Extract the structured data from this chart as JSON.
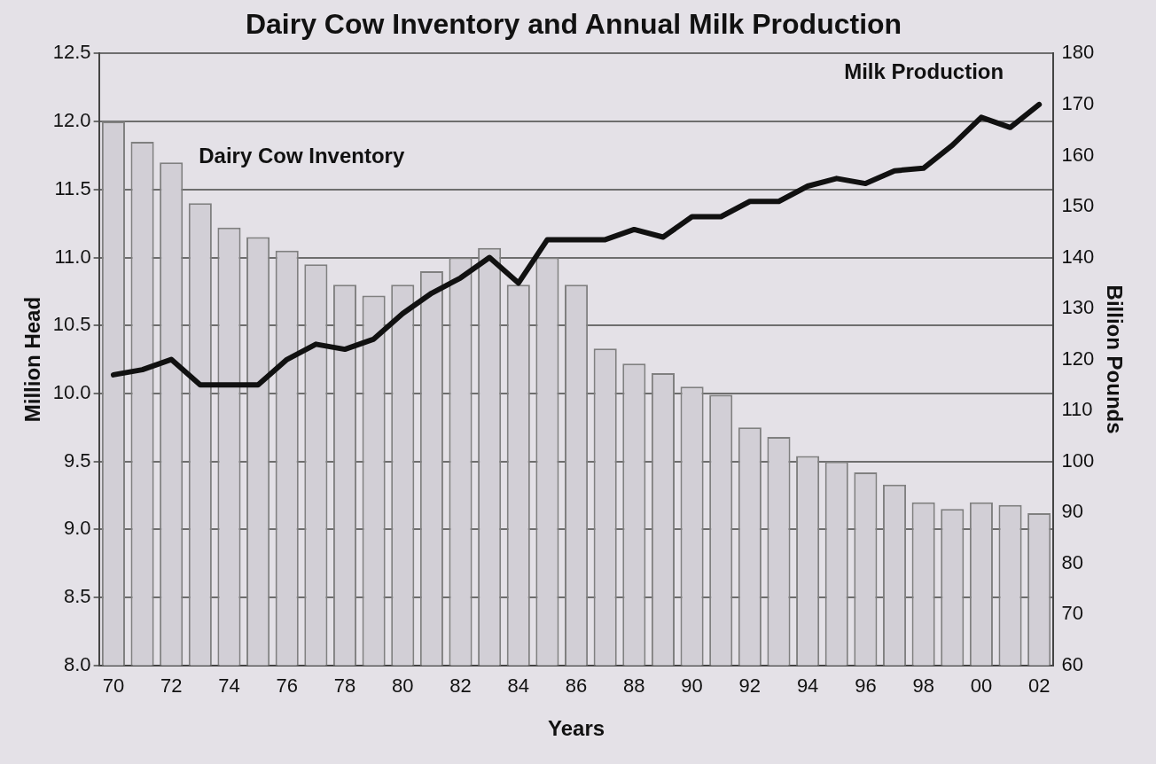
{
  "chart_data": {
    "type": "bar",
    "title": "Dairy Cow Inventory and Annual Milk Production",
    "xlabel": "Years",
    "ylabel": "Million Head",
    "y2label": "Billion Pounds",
    "categories": [
      "70",
      null,
      "72",
      null,
      "74",
      null,
      "76",
      null,
      "78",
      null,
      "80",
      null,
      "82",
      null,
      "84",
      null,
      "86",
      null,
      "88",
      null,
      "90",
      null,
      "92",
      null,
      "94",
      null,
      "96",
      null,
      "98",
      null,
      "00",
      null,
      "02"
    ],
    "series": [
      {
        "name": "Dairy Cow Inventory",
        "color": "#d2cfd6",
        "values": [
          12.0,
          11.85,
          11.7,
          11.4,
          11.22,
          11.15,
          11.05,
          10.95,
          10.8,
          10.72,
          10.8,
          10.9,
          11.0,
          11.07,
          10.8,
          11.0,
          10.8,
          10.33,
          10.22,
          10.15,
          10.05,
          9.99,
          9.75,
          9.68,
          9.54,
          9.5,
          9.42,
          9.33,
          9.2,
          9.15,
          9.2,
          9.18,
          9.12
        ]
      },
      {
        "name": "Milk Production",
        "type": "line",
        "axis": "y2",
        "color": "#111111",
        "values": [
          117,
          118,
          120,
          115,
          115,
          115,
          120,
          123,
          122,
          124,
          129,
          133,
          136,
          140,
          135,
          143.5,
          143.5,
          143.5,
          145.5,
          144,
          148,
          148,
          151,
          151,
          154,
          155.5,
          154.5,
          157,
          157.5,
          162,
          167.5,
          165.5,
          170
        ]
      }
    ],
    "ylim": [
      8.0,
      12.5
    ],
    "yticks": [
      {
        "value": 8,
        "label": "8.0"
      },
      {
        "value": 8.5,
        "label": "8.5"
      },
      {
        "value": 9,
        "label": "9.0"
      },
      {
        "value": 9.5,
        "label": "9.5"
      },
      {
        "value": 10,
        "label": "10.0"
      },
      {
        "value": 10.5,
        "label": "10.5"
      },
      {
        "value": 11,
        "label": "11.0"
      },
      {
        "value": 11.5,
        "label": "11.5"
      },
      {
        "value": 12,
        "label": "12.0"
      },
      {
        "value": 12.5,
        "label": "12.5"
      }
    ],
    "y2lim": [
      60,
      180
    ],
    "y2ticks": [
      60,
      70,
      80,
      90,
      100,
      110,
      120,
      130,
      140,
      150,
      160,
      170,
      180
    ],
    "grid": "y",
    "legend": false,
    "marker": "none",
    "line_style": "solid"
  }
}
